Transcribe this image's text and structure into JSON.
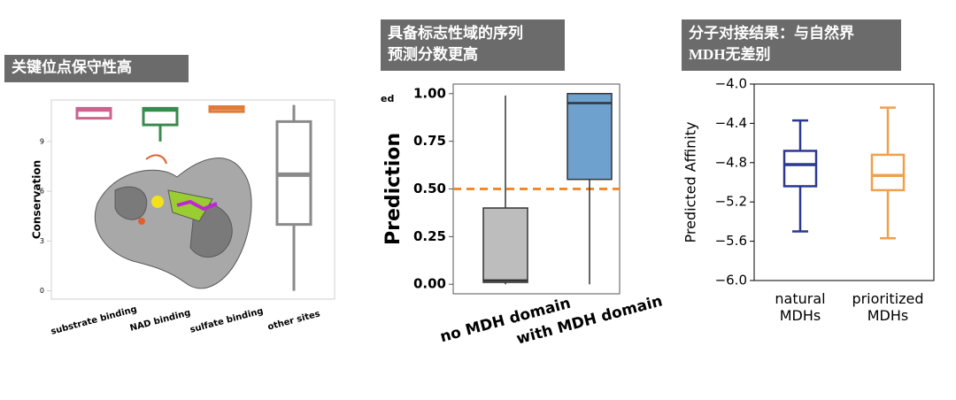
{
  "chart_data": [
    {
      "type": "box",
      "title": "关键位点保守性高",
      "ylabel": "Conservation",
      "categories": [
        "substrate binding",
        "NAD binding",
        "sulfate binding",
        "other sites"
      ],
      "boxes": [
        {
          "color": "#c9658f",
          "whislo": 10.4,
          "q1": 10.4,
          "median": 10.9,
          "q3": 11.0,
          "whishi": 11.0
        },
        {
          "color": "#3a8a4e",
          "whislo": 9.0,
          "q1": 10.0,
          "median": 10.9,
          "q3": 11.0,
          "whishi": 11.0
        },
        {
          "color": "#e07b39",
          "whislo": 10.8,
          "q1": 10.8,
          "median": 11.0,
          "q3": 11.1,
          "whishi": 11.1
        },
        {
          "color": "#8a8a8a",
          "whislo": 0,
          "q1": 4.0,
          "median": 7.0,
          "q3": 10.2,
          "whishi": 11.2
        }
      ],
      "ylim": [
        -0.5,
        11.5
      ],
      "yticks": [
        0,
        3,
        6,
        9
      ]
    },
    {
      "type": "box",
      "title": "具备标志性域的序列\n预测分数更高",
      "ylabel": "Prediction",
      "annotation": "ed",
      "categories": [
        "no MDH domain",
        "with MDH domain"
      ],
      "boxes": [
        {
          "color": "#bdbdbd",
          "whislo": 0,
          "q1": 0.01,
          "median": 0.02,
          "q3": 0.4,
          "whishi": 0.99
        },
        {
          "color": "#6fa1cf",
          "whislo": 0,
          "q1": 0.55,
          "median": 0.95,
          "q3": 1.0,
          "whishi": 1.0
        }
      ],
      "reference_line": {
        "value": 0.5,
        "color": "#f08a2c"
      },
      "ylim": [
        -0.05,
        1.05
      ],
      "yticks": [
        {
          "value": 0,
          "label": "0.00"
        },
        {
          "value": 0.25,
          "label": "0.25"
        },
        {
          "value": 0.5,
          "label": "0.50"
        },
        {
          "value": 0.75,
          "label": "0.75"
        },
        {
          "value": 1,
          "label": "1.00"
        }
      ]
    },
    {
      "type": "box",
      "title": "分子对接结果：与自然界\nMDH无差别",
      "ylabel": "Predicted Affinity",
      "categories": [
        "natural\nMDHs",
        "prioritized\nMDHs"
      ],
      "boxes": [
        {
          "color": "#2b3990",
          "whislo": -5.5,
          "q1": -5.04,
          "median": -4.82,
          "q3": -4.68,
          "whishi": -4.37
        },
        {
          "color": "#f0a04b",
          "whislo": -5.57,
          "q1": -5.08,
          "median": -4.93,
          "q3": -4.72,
          "whishi": -4.24
        }
      ],
      "ylim": [
        -6,
        -4
      ],
      "yticks": [
        {
          "value": -6,
          "label": "−6.0"
        },
        {
          "value": -5.6,
          "label": "−5.6"
        },
        {
          "value": -5.2,
          "label": "−5.2"
        },
        {
          "value": -4.8,
          "label": "−4.8"
        },
        {
          "value": -4.4,
          "label": "−4.4"
        },
        {
          "value": -4,
          "label": "−4.0"
        }
      ]
    }
  ]
}
